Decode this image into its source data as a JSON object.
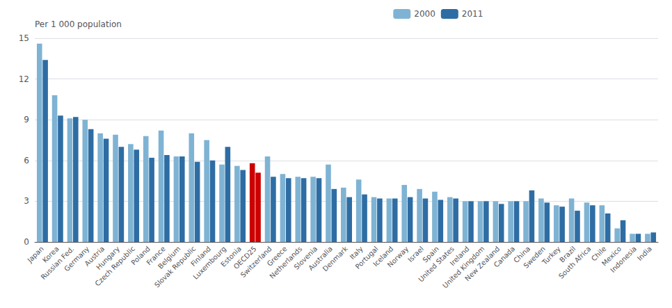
{
  "chart_data": {
    "type": "bar",
    "ylabel": "Per 1 000 population",
    "categories": [
      "Japan",
      "Korea",
      "Russian Fed.",
      "Germany",
      "Austria",
      "Hungary",
      "Czech Republic",
      "Poland",
      "France",
      "Belgium",
      "Slovak Republic",
      "Finland",
      "Luxembourg",
      "Estonia",
      "OECD25",
      "Switzerland",
      "Greece",
      "Netherlands",
      "Slovenia",
      "Australia",
      "Denmark",
      "Italy",
      "Portugal",
      "Iceland",
      "Norway",
      "Israel",
      "Spain",
      "United States",
      "Ireland",
      "United Kingdom",
      "New Zealand",
      "Canada",
      "China",
      "Sweden",
      "Turkey",
      "Brazil",
      "South Africa",
      "Chile",
      "Mexico",
      "Indonesia",
      "India"
    ],
    "series": [
      {
        "name": "2000",
        "color": "#7fb3d3",
        "colors": [
          "#7fb3d3",
          "#7fb3d3",
          "#7fb3d3",
          "#7fb3d3",
          "#7fb3d3",
          "#7fb3d3",
          "#7fb3d3",
          "#7fb3d3",
          "#7fb3d3",
          "#7fb3d3",
          "#7fb3d3",
          "#7fb3d3",
          "#7fb3d3",
          "#7fb3d3",
          "#cc0000",
          "#7fb3d3",
          "#7fb3d3",
          "#7fb3d3",
          "#7fb3d3",
          "#7fb3d3",
          "#7fb3d3",
          "#7fb3d3",
          "#7fb3d3",
          "#7fb3d3",
          "#7fb3d3",
          "#7fb3d3",
          "#7fb3d3",
          "#7fb3d3",
          "#7fb3d3",
          "#7fb3d3",
          "#7fb3d3",
          "#7fb3d3",
          "#7fb3d3",
          "#7fb3d3",
          "#7fb3d3",
          "#7fb3d3",
          "#7fb3d3",
          "#7fb3d3",
          "#7fb3d3",
          "#7fb3d3",
          "#7fb3d3"
        ],
        "values": [
          14.6,
          10.8,
          9.1,
          9.0,
          8.0,
          7.9,
          7.2,
          7.8,
          8.2,
          6.3,
          8.0,
          7.5,
          5.7,
          5.6,
          5.8,
          6.3,
          5.0,
          4.8,
          4.8,
          5.7,
          4.0,
          4.6,
          3.3,
          3.2,
          4.2,
          3.9,
          3.7,
          3.3,
          3.0,
          3.0,
          3.0,
          3.0,
          3.0,
          3.2,
          2.7,
          3.2,
          2.9,
          2.7,
          1.0,
          0.6,
          0.6
        ]
      },
      {
        "name": "2011",
        "color": "#2e6da4",
        "colors": [
          "#2e6da4",
          "#2e6da4",
          "#2e6da4",
          "#2e6da4",
          "#2e6da4",
          "#2e6da4",
          "#2e6da4",
          "#2e6da4",
          "#2e6da4",
          "#2e6da4",
          "#2e6da4",
          "#2e6da4",
          "#2e6da4",
          "#2e6da4",
          "#cc0000",
          "#2e6da4",
          "#2e6da4",
          "#2e6da4",
          "#2e6da4",
          "#2e6da4",
          "#2e6da4",
          "#2e6da4",
          "#2e6da4",
          "#2e6da4",
          "#2e6da4",
          "#2e6da4",
          "#2e6da4",
          "#2e6da4",
          "#2e6da4",
          "#2e6da4",
          "#2e6da4",
          "#2e6da4",
          "#2e6da4",
          "#2e6da4",
          "#2e6da4",
          "#2e6da4",
          "#2e6da4",
          "#2e6da4",
          "#2e6da4",
          "#2e6da4",
          "#2e6da4"
        ],
        "values": [
          13.4,
          9.3,
          9.2,
          8.3,
          7.6,
          7.0,
          6.8,
          6.2,
          6.4,
          6.3,
          5.9,
          6.0,
          7.0,
          5.3,
          5.1,
          4.8,
          4.7,
          4.7,
          4.7,
          3.9,
          3.3,
          3.5,
          3.2,
          3.2,
          3.3,
          3.2,
          3.1,
          3.2,
          3.0,
          3.0,
          2.8,
          3.0,
          3.8,
          2.9,
          2.6,
          2.3,
          2.7,
          2.1,
          1.6,
          0.6,
          0.7
        ]
      }
    ],
    "ylim": [
      0,
      15
    ],
    "yticks": [
      0,
      3,
      6,
      9,
      12,
      15
    ],
    "grid": true,
    "legend": "top"
  }
}
